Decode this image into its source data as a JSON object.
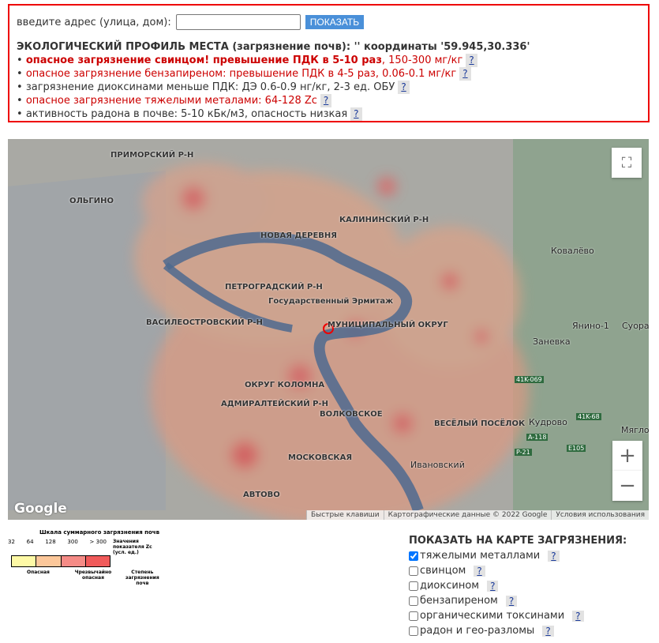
{
  "search": {
    "label": "введите адрес (улица, дом):",
    "value": "",
    "button": "ПОКАЗАТЬ"
  },
  "profile": {
    "title": "ЭКОЛОГИЧЕСКИЙ ПРОФИЛЬ МЕСТА (загрязнение почв): '' координаты '59.945,30.336'",
    "items": [
      {
        "bold": "опасное загрязнение свинцом! превышение ПДК в 5-10 раз",
        "text": ", 150-300 мг/кг",
        "color": "red"
      },
      {
        "bold": "",
        "text": "опасное загрязнение бензапиреном: превышение ПДК в 4-5 раз, 0.06-0.1 мг/кг",
        "color": "red"
      },
      {
        "bold": "",
        "text": "загрязнение диоксинами меньше ПДК: ДЭ 0.6-0.9 нг/кг, 2-3 ед. ОБУ",
        "color": "gray"
      },
      {
        "bold": "",
        "text": "опасное загрязнение тяжелыми металами: 64-128 Zc",
        "color": "red"
      },
      {
        "bold": "",
        "text": "активность радона в почве: 5-10 кБк/м3, опасность низкая",
        "color": "gray"
      }
    ],
    "help": "?"
  },
  "map": {
    "labels": [
      "ПРИМОРСКИЙ Р-Н",
      "ОЛЬГИНО",
      "КАЛИНИНСКИЙ Р-Н",
      "НОВАЯ ДЕРЕВНЯ",
      "ПЕТРОГРАДСКИЙ Р-Н",
      "Государственный Эрмитаж",
      "ВАСИЛЕОСТРОВСКИЙ Р-Н",
      "МУНИЦИПАЛЬНЫЙ ОКРУГ",
      "АДМИРАЛТЕЙСКИЙ Р-Н",
      "ВОЛКОВСКОЕ",
      "МОСКОВСКАЯ",
      "АВТОВО",
      "ВЕСЁЛЫЙ ПОСЁЛОК",
      "ОКРУГ КОЛОМНА"
    ],
    "places": [
      "Ковалёво",
      "Янино-1",
      "Заневка",
      "Суоранда",
      "Кудрово",
      "Мяглово",
      "Ивановский"
    ],
    "roads": [
      "41K-069",
      "41K-68",
      "A-118",
      "P-21",
      "E105"
    ],
    "logo": "Google",
    "attribution": [
      "Быстрые клавиши",
      "Картографические данные © 2022 Google",
      "Условия использования"
    ],
    "zoom_in": "+",
    "zoom_out": "−"
  },
  "scale": {
    "title": "Шкала суммарного загрязнения почв",
    "ticks": [
      "32",
      "64",
      "128",
      "300",
      "> 300"
    ],
    "value_label": "Значения показателя Zc (усл. ед.)",
    "degree_label": "Степень загрязнения почв",
    "levels": [
      "Опасная",
      "Чрезвычайно опасная"
    ],
    "colors": [
      "#fef9a6",
      "#fcc79a",
      "#f58b86",
      "#f05a5a"
    ]
  },
  "layers": {
    "title": "ПОКАЗАТЬ НА КАРТЕ ЗАГРЯЗНЕНИЯ:",
    "items": [
      {
        "label": "тяжелыми металлами",
        "checked": true
      },
      {
        "label": "свинцом",
        "checked": false
      },
      {
        "label": "диоксином",
        "checked": false
      },
      {
        "label": "бензапиреном",
        "checked": false
      },
      {
        "label": "органическими токсинами",
        "checked": false
      },
      {
        "label": "радон и гео-разломы",
        "checked": false
      }
    ],
    "help": "?"
  }
}
